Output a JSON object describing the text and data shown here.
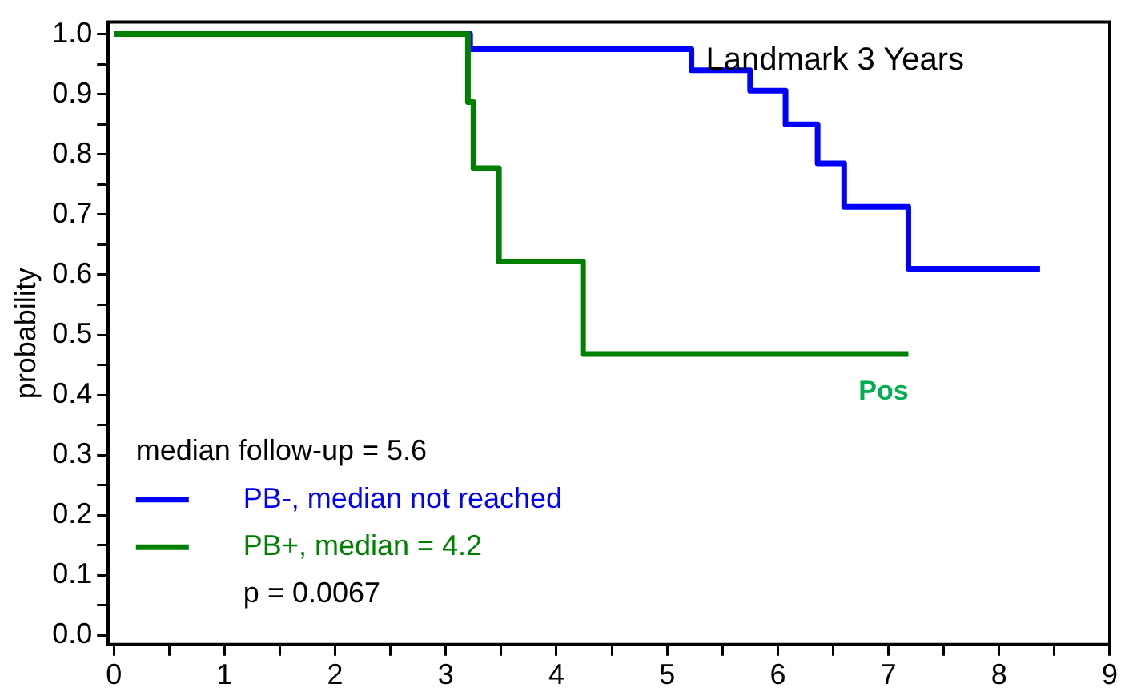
{
  "chart_data": {
    "type": "step",
    "ylabel": "probability",
    "legend": "bottom left",
    "grid": false,
    "marker": "none",
    "line_style": "solid",
    "xlim": [
      -0.05,
      9
    ],
    "ylim": [
      -0.015,
      1.02
    ],
    "xticks": [
      0,
      {
        "value": 0.5,
        "label": null
      },
      1,
      {
        "value": 1.5,
        "label": null
      },
      2,
      {
        "value": 2.5,
        "label": null
      },
      3,
      {
        "value": 3.5,
        "label": null
      },
      4,
      {
        "value": 4.5,
        "label": null
      },
      5,
      {
        "value": 5.5,
        "label": null
      },
      6,
      {
        "value": 6.5,
        "label": null
      },
      7,
      {
        "value": 7.5,
        "label": null
      },
      8,
      {
        "value": 8.5,
        "label": null
      },
      9
    ],
    "yticks": [
      {
        "value": 0,
        "label": "0.0"
      },
      {
        "value": 0.05,
        "label": null
      },
      0.1,
      {
        "value": 0.15,
        "label": null
      },
      0.2,
      {
        "value": 0.25,
        "label": null
      },
      0.3,
      {
        "value": 0.35,
        "label": null
      },
      0.4,
      {
        "value": 0.45,
        "label": null
      },
      0.5,
      {
        "value": 0.55,
        "label": null
      },
      0.6,
      {
        "value": 0.65,
        "label": null
      },
      0.7,
      {
        "value": 0.75,
        "label": null
      },
      0.8,
      {
        "value": 0.85,
        "label": null
      },
      0.9,
      {
        "value": 0.95,
        "label": null
      },
      {
        "value": 1,
        "label": "1.0"
      }
    ],
    "series": [
      {
        "name": "PB-, median not reached",
        "color": "#0000ff",
        "x": [
          0,
          3.22,
          5.22,
          5.75,
          6.07,
          6.36,
          6.6,
          7.18,
          8.37
        ],
        "values": [
          1,
          0.975,
          0.94,
          0.906,
          0.85,
          0.785,
          0.713,
          0.61,
          0.61
        ]
      },
      {
        "name": "PB+, median = 4.2",
        "color": "#008000",
        "x": [
          0,
          3.2,
          3.25,
          3.48,
          4.24,
          7.18
        ],
        "values": [
          1,
          0.887,
          0.777,
          0.622,
          0.468,
          0.468
        ]
      }
    ],
    "annotations": [
      "Landmark 3 Years",
      "Pos",
      "median follow-up = 5.6",
      "p = 0.0067"
    ]
  }
}
